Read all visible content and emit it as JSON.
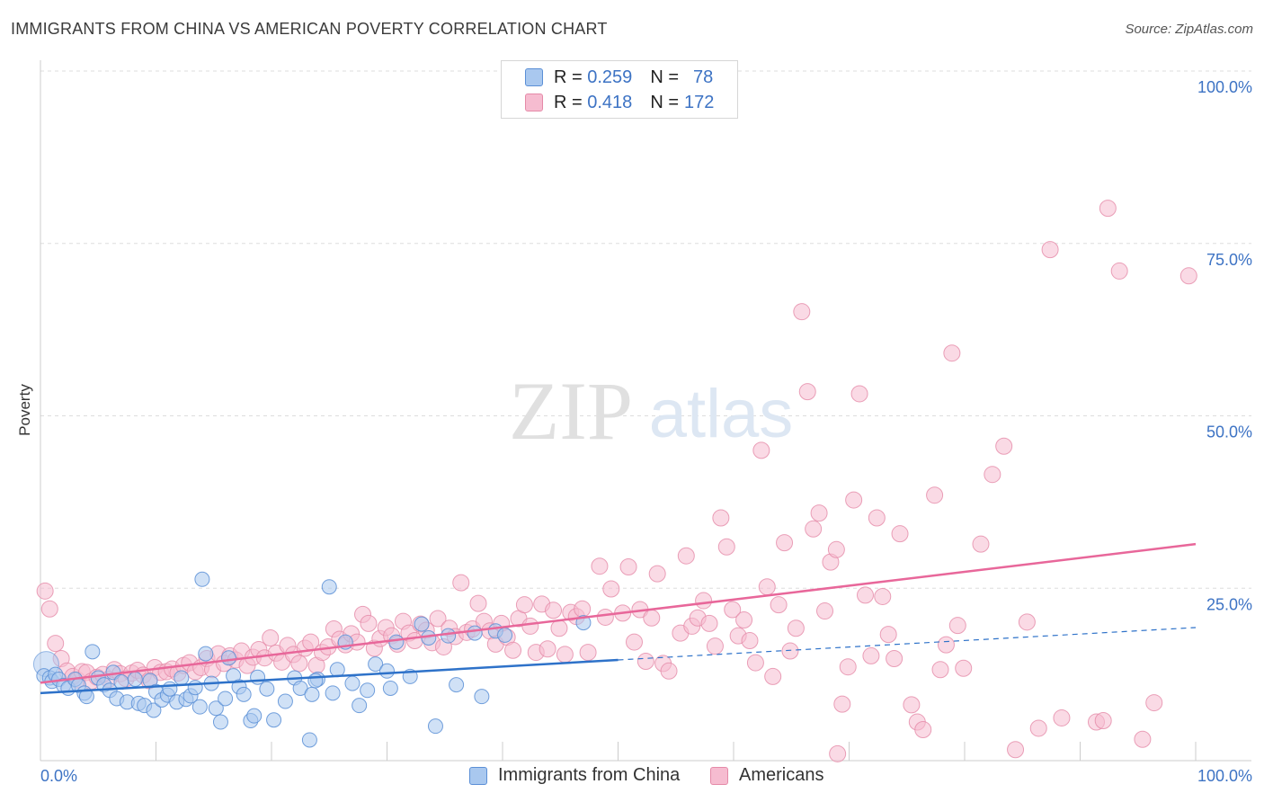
{
  "title": "IMMIGRANTS FROM CHINA VS AMERICAN POVERTY CORRELATION CHART",
  "source": "Source: ZipAtlas.com",
  "watermark": {
    "zip": "ZIP",
    "atlas": "atlas"
  },
  "legend": {
    "rows": [
      {
        "r_label": "R =",
        "r_value": "0.259",
        "n_label": "N =",
        "n_value": "78"
      },
      {
        "r_label": "R =",
        "r_value": "0.418",
        "n_label": "N =",
        "n_value": "172"
      }
    ]
  },
  "bottom_legend": [
    "Immigrants from China",
    "Americans"
  ],
  "colors": {
    "china_fill": "#a9c8ef",
    "china_stroke": "#5b8fd6",
    "china_line": "#2e72c9",
    "americans_fill": "#f6bcd0",
    "americans_stroke": "#e58aa8",
    "americans_line": "#e8679a",
    "axis_text": "#3d73c4",
    "grid": "#dddddd"
  },
  "chart_data": {
    "type": "scatter",
    "title": "IMMIGRANTS FROM CHINA VS AMERICAN POVERTY CORRELATION CHART",
    "xlabel": "",
    "ylabel": "Poverty",
    "xlim": [
      0,
      100
    ],
    "ylim": [
      0,
      100
    ],
    "x_tick_labels": [
      "0.0%",
      "100.0%"
    ],
    "y_ticks": [
      25,
      50,
      75,
      100
    ],
    "y_tick_labels": [
      "25.0%",
      "50.0%",
      "75.0%",
      "100.0%"
    ],
    "grid": true,
    "series": [
      {
        "name": "Immigrants from China",
        "r": 0.259,
        "n": 78,
        "trend_solid": [
          [
            0,
            9.8
          ],
          [
            50,
            14.6
          ]
        ],
        "trend_dashed": [
          [
            50,
            14.6
          ],
          [
            100,
            19.3
          ]
        ],
        "points": [
          [
            0.3,
            12.3
          ],
          [
            0.8,
            12.0
          ],
          [
            1.0,
            11.5
          ],
          [
            1.3,
            12.5
          ],
          [
            1.6,
            11.8
          ],
          [
            2.0,
            10.9
          ],
          [
            2.4,
            10.5
          ],
          [
            3.0,
            11.8
          ],
          [
            3.3,
            10.9
          ],
          [
            3.8,
            9.8
          ],
          [
            4.0,
            9.3
          ],
          [
            4.5,
            15.8
          ],
          [
            5.0,
            12.0
          ],
          [
            5.5,
            11.0
          ],
          [
            6.0,
            10.2
          ],
          [
            6.3,
            12.8
          ],
          [
            6.6,
            9.0
          ],
          [
            7.0,
            11.4
          ],
          [
            7.5,
            8.5
          ],
          [
            8.2,
            11.8
          ],
          [
            8.5,
            8.3
          ],
          [
            9.0,
            8.0
          ],
          [
            9.5,
            11.6
          ],
          [
            9.8,
            7.3
          ],
          [
            10.0,
            10.0
          ],
          [
            10.5,
            8.8
          ],
          [
            11.0,
            9.5
          ],
          [
            11.2,
            10.4
          ],
          [
            11.8,
            8.5
          ],
          [
            12.2,
            12.0
          ],
          [
            12.6,
            8.9
          ],
          [
            13.0,
            9.4
          ],
          [
            13.4,
            10.6
          ],
          [
            13.8,
            7.8
          ],
          [
            14.0,
            26.3
          ],
          [
            14.3,
            15.5
          ],
          [
            14.8,
            11.2
          ],
          [
            15.2,
            7.6
          ],
          [
            15.6,
            5.6
          ],
          [
            16.0,
            9.0
          ],
          [
            16.3,
            14.9
          ],
          [
            16.7,
            12.3
          ],
          [
            17.2,
            10.7
          ],
          [
            17.6,
            9.6
          ],
          [
            18.2,
            5.8
          ],
          [
            18.5,
            6.5
          ],
          [
            18.8,
            12.1
          ],
          [
            19.6,
            10.4
          ],
          [
            20.2,
            5.9
          ],
          [
            21.2,
            8.6
          ],
          [
            22.0,
            12.0
          ],
          [
            22.5,
            10.5
          ],
          [
            23.5,
            9.6
          ],
          [
            24.0,
            11.8
          ],
          [
            25.0,
            25.2
          ],
          [
            25.7,
            13.2
          ],
          [
            26.4,
            17.2
          ],
          [
            27.0,
            11.2
          ],
          [
            27.6,
            8.0
          ],
          [
            28.3,
            10.2
          ],
          [
            29.0,
            14.0
          ],
          [
            30.0,
            13.0
          ],
          [
            30.3,
            10.5
          ],
          [
            30.8,
            17.2
          ],
          [
            32.0,
            12.2
          ],
          [
            33.0,
            19.8
          ],
          [
            33.6,
            17.8
          ],
          [
            34.2,
            5.0
          ],
          [
            35.3,
            18.1
          ],
          [
            36.0,
            11.0
          ],
          [
            37.6,
            18.5
          ],
          [
            38.2,
            9.3
          ],
          [
            39.4,
            18.8
          ],
          [
            40.2,
            18.2
          ],
          [
            47.0,
            20.0
          ],
          [
            23.8,
            11.6
          ],
          [
            23.3,
            3.0
          ],
          [
            25.3,
            9.8
          ]
        ]
      },
      {
        "name": "Americans",
        "r": 0.418,
        "n": 172,
        "trend": [
          [
            0,
            11.3
          ],
          [
            100,
            31.4
          ]
        ],
        "points": [
          [
            0.4,
            24.6
          ],
          [
            0.8,
            22.0
          ],
          [
            1.3,
            17.0
          ],
          [
            1.8,
            14.8
          ],
          [
            2.3,
            13.0
          ],
          [
            2.8,
            12.2
          ],
          [
            3.2,
            11.7
          ],
          [
            3.6,
            12.9
          ],
          [
            4.0,
            12.8
          ],
          [
            4.4,
            11.5
          ],
          [
            4.9,
            12.1
          ],
          [
            5.4,
            12.5
          ],
          [
            5.9,
            11.8
          ],
          [
            6.4,
            13.2
          ],
          [
            6.9,
            12.6
          ],
          [
            7.4,
            11.9
          ],
          [
            7.9,
            12.7
          ],
          [
            8.4,
            13.1
          ],
          [
            8.9,
            12.4
          ],
          [
            9.4,
            11.6
          ],
          [
            9.9,
            13.5
          ],
          [
            10.4,
            12.8
          ],
          [
            10.9,
            12.9
          ],
          [
            11.4,
            13.3
          ],
          [
            11.9,
            12.7
          ],
          [
            12.4,
            13.8
          ],
          [
            12.9,
            14.2
          ],
          [
            13.4,
            12.9
          ],
          [
            13.9,
            13.5
          ],
          [
            14.4,
            14.8
          ],
          [
            14.9,
            13.2
          ],
          [
            15.4,
            15.5
          ],
          [
            15.9,
            14.1
          ],
          [
            16.4,
            15.2
          ],
          [
            16.9,
            14.6
          ],
          [
            17.4,
            15.9
          ],
          [
            17.9,
            13.8
          ],
          [
            18.4,
            15.0
          ],
          [
            18.9,
            16.1
          ],
          [
            19.4,
            14.9
          ],
          [
            19.9,
            17.8
          ],
          [
            20.4,
            15.6
          ],
          [
            20.9,
            14.3
          ],
          [
            21.4,
            16.7
          ],
          [
            21.9,
            15.4
          ],
          [
            22.4,
            14.1
          ],
          [
            22.9,
            16.3
          ],
          [
            23.4,
            17.2
          ],
          [
            23.9,
            13.8
          ],
          [
            24.4,
            15.7
          ],
          [
            24.9,
            16.5
          ],
          [
            25.4,
            19.1
          ],
          [
            25.9,
            17.6
          ],
          [
            26.4,
            16.8
          ],
          [
            26.9,
            18.4
          ],
          [
            27.4,
            17.2
          ],
          [
            27.9,
            21.2
          ],
          [
            28.4,
            19.9
          ],
          [
            28.9,
            16.3
          ],
          [
            29.4,
            17.7
          ],
          [
            29.9,
            19.3
          ],
          [
            30.4,
            18.1
          ],
          [
            30.9,
            16.9
          ],
          [
            31.4,
            20.2
          ],
          [
            31.9,
            18.5
          ],
          [
            32.4,
            17.4
          ],
          [
            32.9,
            19.8
          ],
          [
            33.4,
            18.9
          ],
          [
            33.9,
            17.1
          ],
          [
            34.4,
            20.6
          ],
          [
            34.9,
            16.5
          ],
          [
            35.4,
            19.2
          ],
          [
            35.9,
            18.0
          ],
          [
            36.4,
            25.8
          ],
          [
            36.9,
            18.6
          ],
          [
            37.4,
            19.1
          ],
          [
            37.9,
            22.8
          ],
          [
            38.4,
            20.2
          ],
          [
            38.9,
            18.8
          ],
          [
            39.4,
            16.9
          ],
          [
            39.9,
            19.9
          ],
          [
            40.4,
            17.9
          ],
          [
            40.9,
            16.0
          ],
          [
            41.4,
            20.6
          ],
          [
            41.9,
            22.6
          ],
          [
            42.4,
            19.5
          ],
          [
            42.9,
            15.7
          ],
          [
            43.4,
            22.7
          ],
          [
            43.9,
            16.2
          ],
          [
            44.4,
            21.8
          ],
          [
            44.9,
            19.2
          ],
          [
            45.4,
            15.4
          ],
          [
            45.9,
            21.5
          ],
          [
            46.4,
            20.9
          ],
          [
            46.9,
            22.0
          ],
          [
            47.4,
            15.7
          ],
          [
            48.4,
            28.2
          ],
          [
            48.9,
            20.8
          ],
          [
            49.4,
            24.9
          ],
          [
            50.4,
            21.4
          ],
          [
            50.9,
            28.1
          ],
          [
            51.4,
            17.2
          ],
          [
            51.9,
            21.9
          ],
          [
            52.4,
            14.4
          ],
          [
            52.9,
            20.7
          ],
          [
            53.4,
            27.1
          ],
          [
            53.9,
            14.1
          ],
          [
            54.4,
            13.0
          ],
          [
            55.4,
            18.5
          ],
          [
            55.9,
            29.7
          ],
          [
            56.4,
            19.5
          ],
          [
            56.9,
            20.7
          ],
          [
            57.4,
            23.2
          ],
          [
            57.9,
            19.9
          ],
          [
            58.4,
            16.6
          ],
          [
            58.9,
            35.2
          ],
          [
            59.4,
            31.0
          ],
          [
            59.9,
            21.9
          ],
          [
            60.4,
            18.1
          ],
          [
            60.9,
            20.4
          ],
          [
            61.4,
            17.4
          ],
          [
            61.9,
            14.2
          ],
          [
            62.4,
            45.0
          ],
          [
            62.9,
            25.2
          ],
          [
            63.4,
            12.2
          ],
          [
            63.9,
            22.6
          ],
          [
            64.4,
            31.6
          ],
          [
            64.9,
            15.9
          ],
          [
            65.4,
            19.2
          ],
          [
            65.9,
            65.1
          ],
          [
            66.4,
            53.5
          ],
          [
            66.9,
            33.6
          ],
          [
            67.4,
            35.9
          ],
          [
            67.9,
            21.7
          ],
          [
            68.4,
            28.8
          ],
          [
            68.9,
            30.6
          ],
          [
            69.4,
            8.2
          ],
          [
            69.9,
            13.6
          ],
          [
            70.4,
            37.8
          ],
          [
            70.9,
            53.2
          ],
          [
            71.4,
            24.0
          ],
          [
            71.9,
            15.2
          ],
          [
            72.4,
            35.2
          ],
          [
            72.9,
            23.8
          ],
          [
            73.4,
            18.3
          ],
          [
            73.9,
            14.8
          ],
          [
            74.4,
            32.9
          ],
          [
            75.4,
            8.1
          ],
          [
            75.9,
            5.6
          ],
          [
            76.4,
            4.5
          ],
          [
            77.4,
            38.5
          ],
          [
            77.9,
            13.2
          ],
          [
            78.4,
            16.8
          ],
          [
            78.9,
            59.1
          ],
          [
            79.4,
            19.6
          ],
          [
            79.9,
            13.4
          ],
          [
            81.4,
            31.4
          ],
          [
            82.4,
            41.5
          ],
          [
            83.4,
            45.6
          ],
          [
            84.4,
            1.6
          ],
          [
            85.4,
            20.1
          ],
          [
            86.4,
            4.7
          ],
          [
            87.4,
            74.1
          ],
          [
            88.4,
            6.2
          ],
          [
            91.4,
            5.6
          ],
          [
            92.4,
            80.1
          ],
          [
            93.4,
            71.0
          ],
          [
            95.4,
            3.1
          ],
          [
            96.4,
            8.4
          ],
          [
            99.4,
            70.3
          ],
          [
            69.0,
            1.0
          ],
          [
            92.0,
            5.8
          ]
        ]
      }
    ]
  }
}
